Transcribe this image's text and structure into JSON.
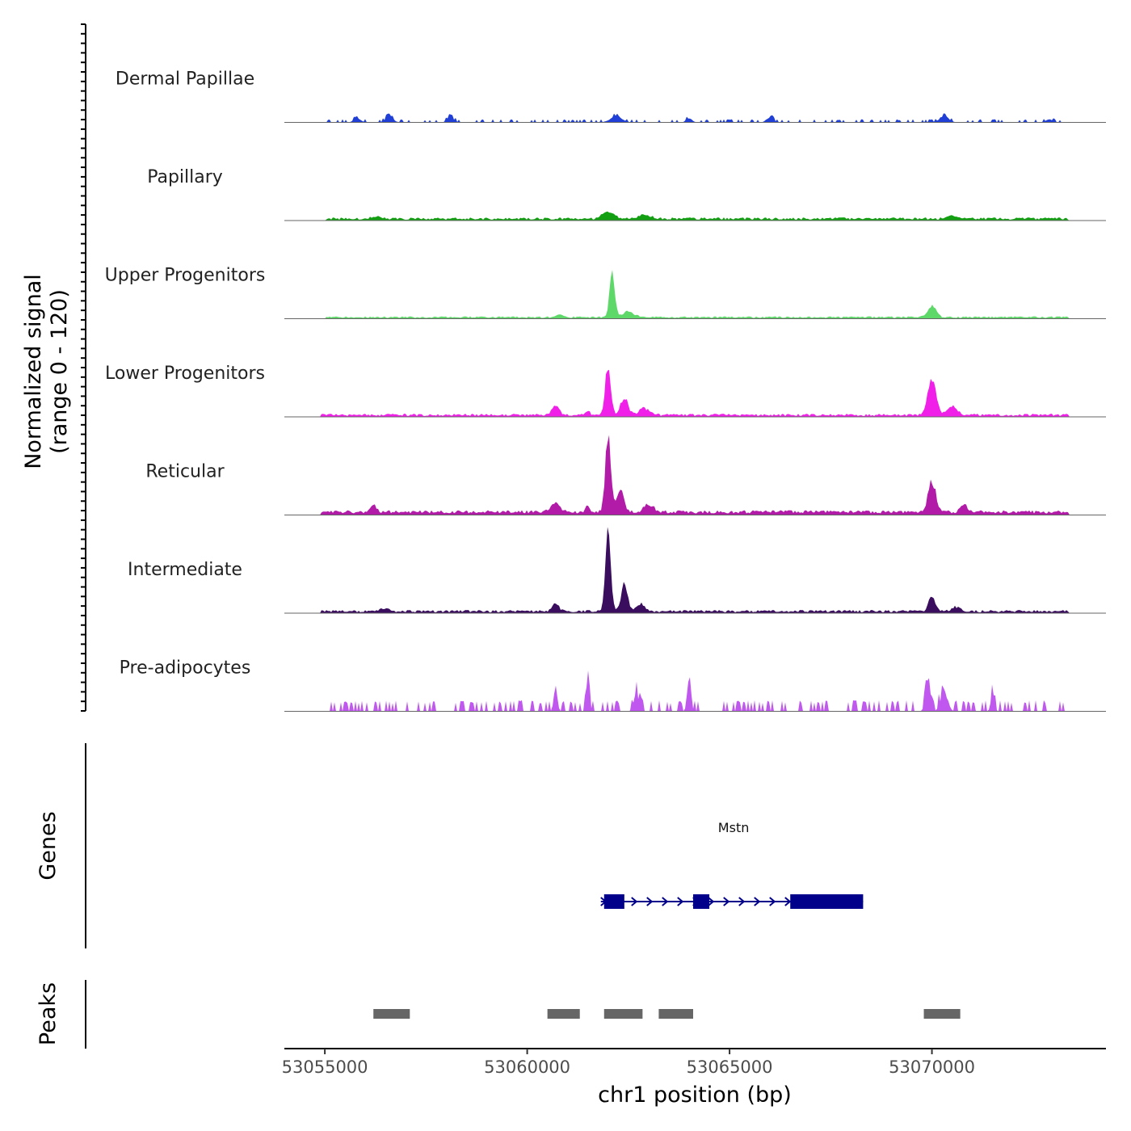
{
  "chart_data": {
    "type": "area",
    "title": "",
    "chromosome": "chr1",
    "xlabel": "chr1 position (bp)",
    "ylabel_line1": "Normalized signal",
    "ylabel_line2": "(range 0 - 120)",
    "xlim": [
      53054000,
      53074300
    ],
    "ylim": [
      0,
      120
    ],
    "x_ticks": [
      53055000,
      53060000,
      53065000,
      53070000
    ],
    "x_tick_labels": [
      "53055000",
      "53060000",
      "53065000",
      "53070000"
    ],
    "tracks": [
      {
        "name": "Dermal Papillae",
        "color": "#1f3fd6",
        "bg": 0,
        "noise_region": [
          53054900,
          53073400
        ],
        "noise_seed": 11,
        "noise": 4,
        "sparse": true,
        "peaks": [
          {
            "x": 53055800,
            "h": 6,
            "w": 120
          },
          {
            "x": 53056600,
            "h": 10,
            "w": 120
          },
          {
            "x": 53058100,
            "h": 8,
            "w": 110
          },
          {
            "x": 53062200,
            "h": 9,
            "w": 200
          },
          {
            "x": 53064000,
            "h": 6,
            "w": 100
          },
          {
            "x": 53066000,
            "h": 7,
            "w": 120
          },
          {
            "x": 53070300,
            "h": 9,
            "w": 160
          },
          {
            "x": 53072900,
            "h": 5,
            "w": 100
          }
        ]
      },
      {
        "name": "Papillary",
        "color": "#12a012",
        "bg": 1,
        "noise_region": [
          53055000,
          53073400
        ],
        "noise_seed": 23,
        "noise": 3,
        "sparse": false,
        "peaks": [
          {
            "x": 53056300,
            "h": 4,
            "w": 180
          },
          {
            "x": 53062000,
            "h": 9,
            "w": 200
          },
          {
            "x": 53062900,
            "h": 5,
            "w": 220
          },
          {
            "x": 53070500,
            "h": 4,
            "w": 150
          }
        ]
      },
      {
        "name": "Upper Progenitors",
        "color": "#5fd86a",
        "bg": 1,
        "noise_region": [
          53055000,
          53073400
        ],
        "noise_seed": 37,
        "noise": 2,
        "sparse": false,
        "peaks": [
          {
            "x": 53062100,
            "h": 62,
            "w": 90
          },
          {
            "x": 53062500,
            "h": 8,
            "w": 200
          },
          {
            "x": 53070000,
            "h": 17,
            "w": 140
          },
          {
            "x": 53060800,
            "h": 4,
            "w": 120
          }
        ]
      },
      {
        "name": "Lower Progenitors",
        "color": "#f020e8",
        "bg": 1,
        "noise_region": [
          53054900,
          53073400
        ],
        "noise_seed": 41,
        "noise": 3,
        "sparse": false,
        "peaks": [
          {
            "x": 53062000,
            "h": 72,
            "w": 95
          },
          {
            "x": 53062400,
            "h": 25,
            "w": 130
          },
          {
            "x": 53062900,
            "h": 10,
            "w": 180
          },
          {
            "x": 53060700,
            "h": 14,
            "w": 120
          },
          {
            "x": 53061500,
            "h": 7,
            "w": 60
          },
          {
            "x": 53070000,
            "h": 55,
            "w": 140
          },
          {
            "x": 53070500,
            "h": 12,
            "w": 170
          }
        ]
      },
      {
        "name": "Reticular",
        "color": "#b21aa8",
        "bg": 2,
        "noise_region": [
          53054900,
          53073400
        ],
        "noise_seed": 53,
        "noise": 4,
        "sparse": false,
        "peaks": [
          {
            "x": 53062000,
            "h": 110,
            "w": 95
          },
          {
            "x": 53062300,
            "h": 30,
            "w": 130
          },
          {
            "x": 53063000,
            "h": 12,
            "w": 160
          },
          {
            "x": 53060700,
            "h": 15,
            "w": 150
          },
          {
            "x": 53056200,
            "h": 10,
            "w": 120
          },
          {
            "x": 53061500,
            "h": 12,
            "w": 60
          },
          {
            "x": 53070000,
            "h": 45,
            "w": 130
          },
          {
            "x": 53070800,
            "h": 10,
            "w": 120
          }
        ]
      },
      {
        "name": "Intermediate",
        "color": "#3a0d5e",
        "bg": 1,
        "noise_region": [
          53054900,
          53073400
        ],
        "noise_seed": 67,
        "noise": 3,
        "sparse": false,
        "peaks": [
          {
            "x": 53062000,
            "h": 118,
            "w": 90
          },
          {
            "x": 53062400,
            "h": 40,
            "w": 110
          },
          {
            "x": 53062800,
            "h": 10,
            "w": 160
          },
          {
            "x": 53060700,
            "h": 12,
            "w": 110
          },
          {
            "x": 53056500,
            "h": 5,
            "w": 140
          },
          {
            "x": 53070000,
            "h": 20,
            "w": 120
          },
          {
            "x": 53070600,
            "h": 6,
            "w": 150
          }
        ]
      },
      {
        "name": "Pre-adipocytes",
        "color": "#c058f0",
        "bg": 0,
        "noise_region": [
          53055000,
          53073400
        ],
        "noise_seed": 79,
        "noise": 14,
        "sparse": true,
        "peaks": [
          {
            "x": 53060700,
            "h": 35,
            "w": 60
          },
          {
            "x": 53061500,
            "h": 55,
            "w": 55
          },
          {
            "x": 53064000,
            "h": 55,
            "w": 60
          },
          {
            "x": 53062700,
            "h": 25,
            "w": 90
          },
          {
            "x": 53069900,
            "h": 48,
            "w": 80
          },
          {
            "x": 53070300,
            "h": 30,
            "w": 120
          },
          {
            "x": 53071500,
            "h": 26,
            "w": 60
          }
        ]
      }
    ],
    "genes": [
      {
        "name": "Mstn",
        "strand": "+",
        "start": 53061900,
        "end": 53068300,
        "color": "#00008b",
        "exons": [
          [
            53061900,
            53062400
          ],
          [
            53064100,
            53064500
          ],
          [
            53066500,
            53068300
          ]
        ]
      }
    ],
    "peaks_track_label": "Peaks",
    "peaks_color": "#666666",
    "peak_regions": [
      [
        53056200,
        53057100
      ],
      [
        53060500,
        53061300
      ],
      [
        53061900,
        53062850
      ],
      [
        53063250,
        53064100
      ],
      [
        53069800,
        53070700
      ]
    ],
    "genes_track_label": "Genes"
  }
}
